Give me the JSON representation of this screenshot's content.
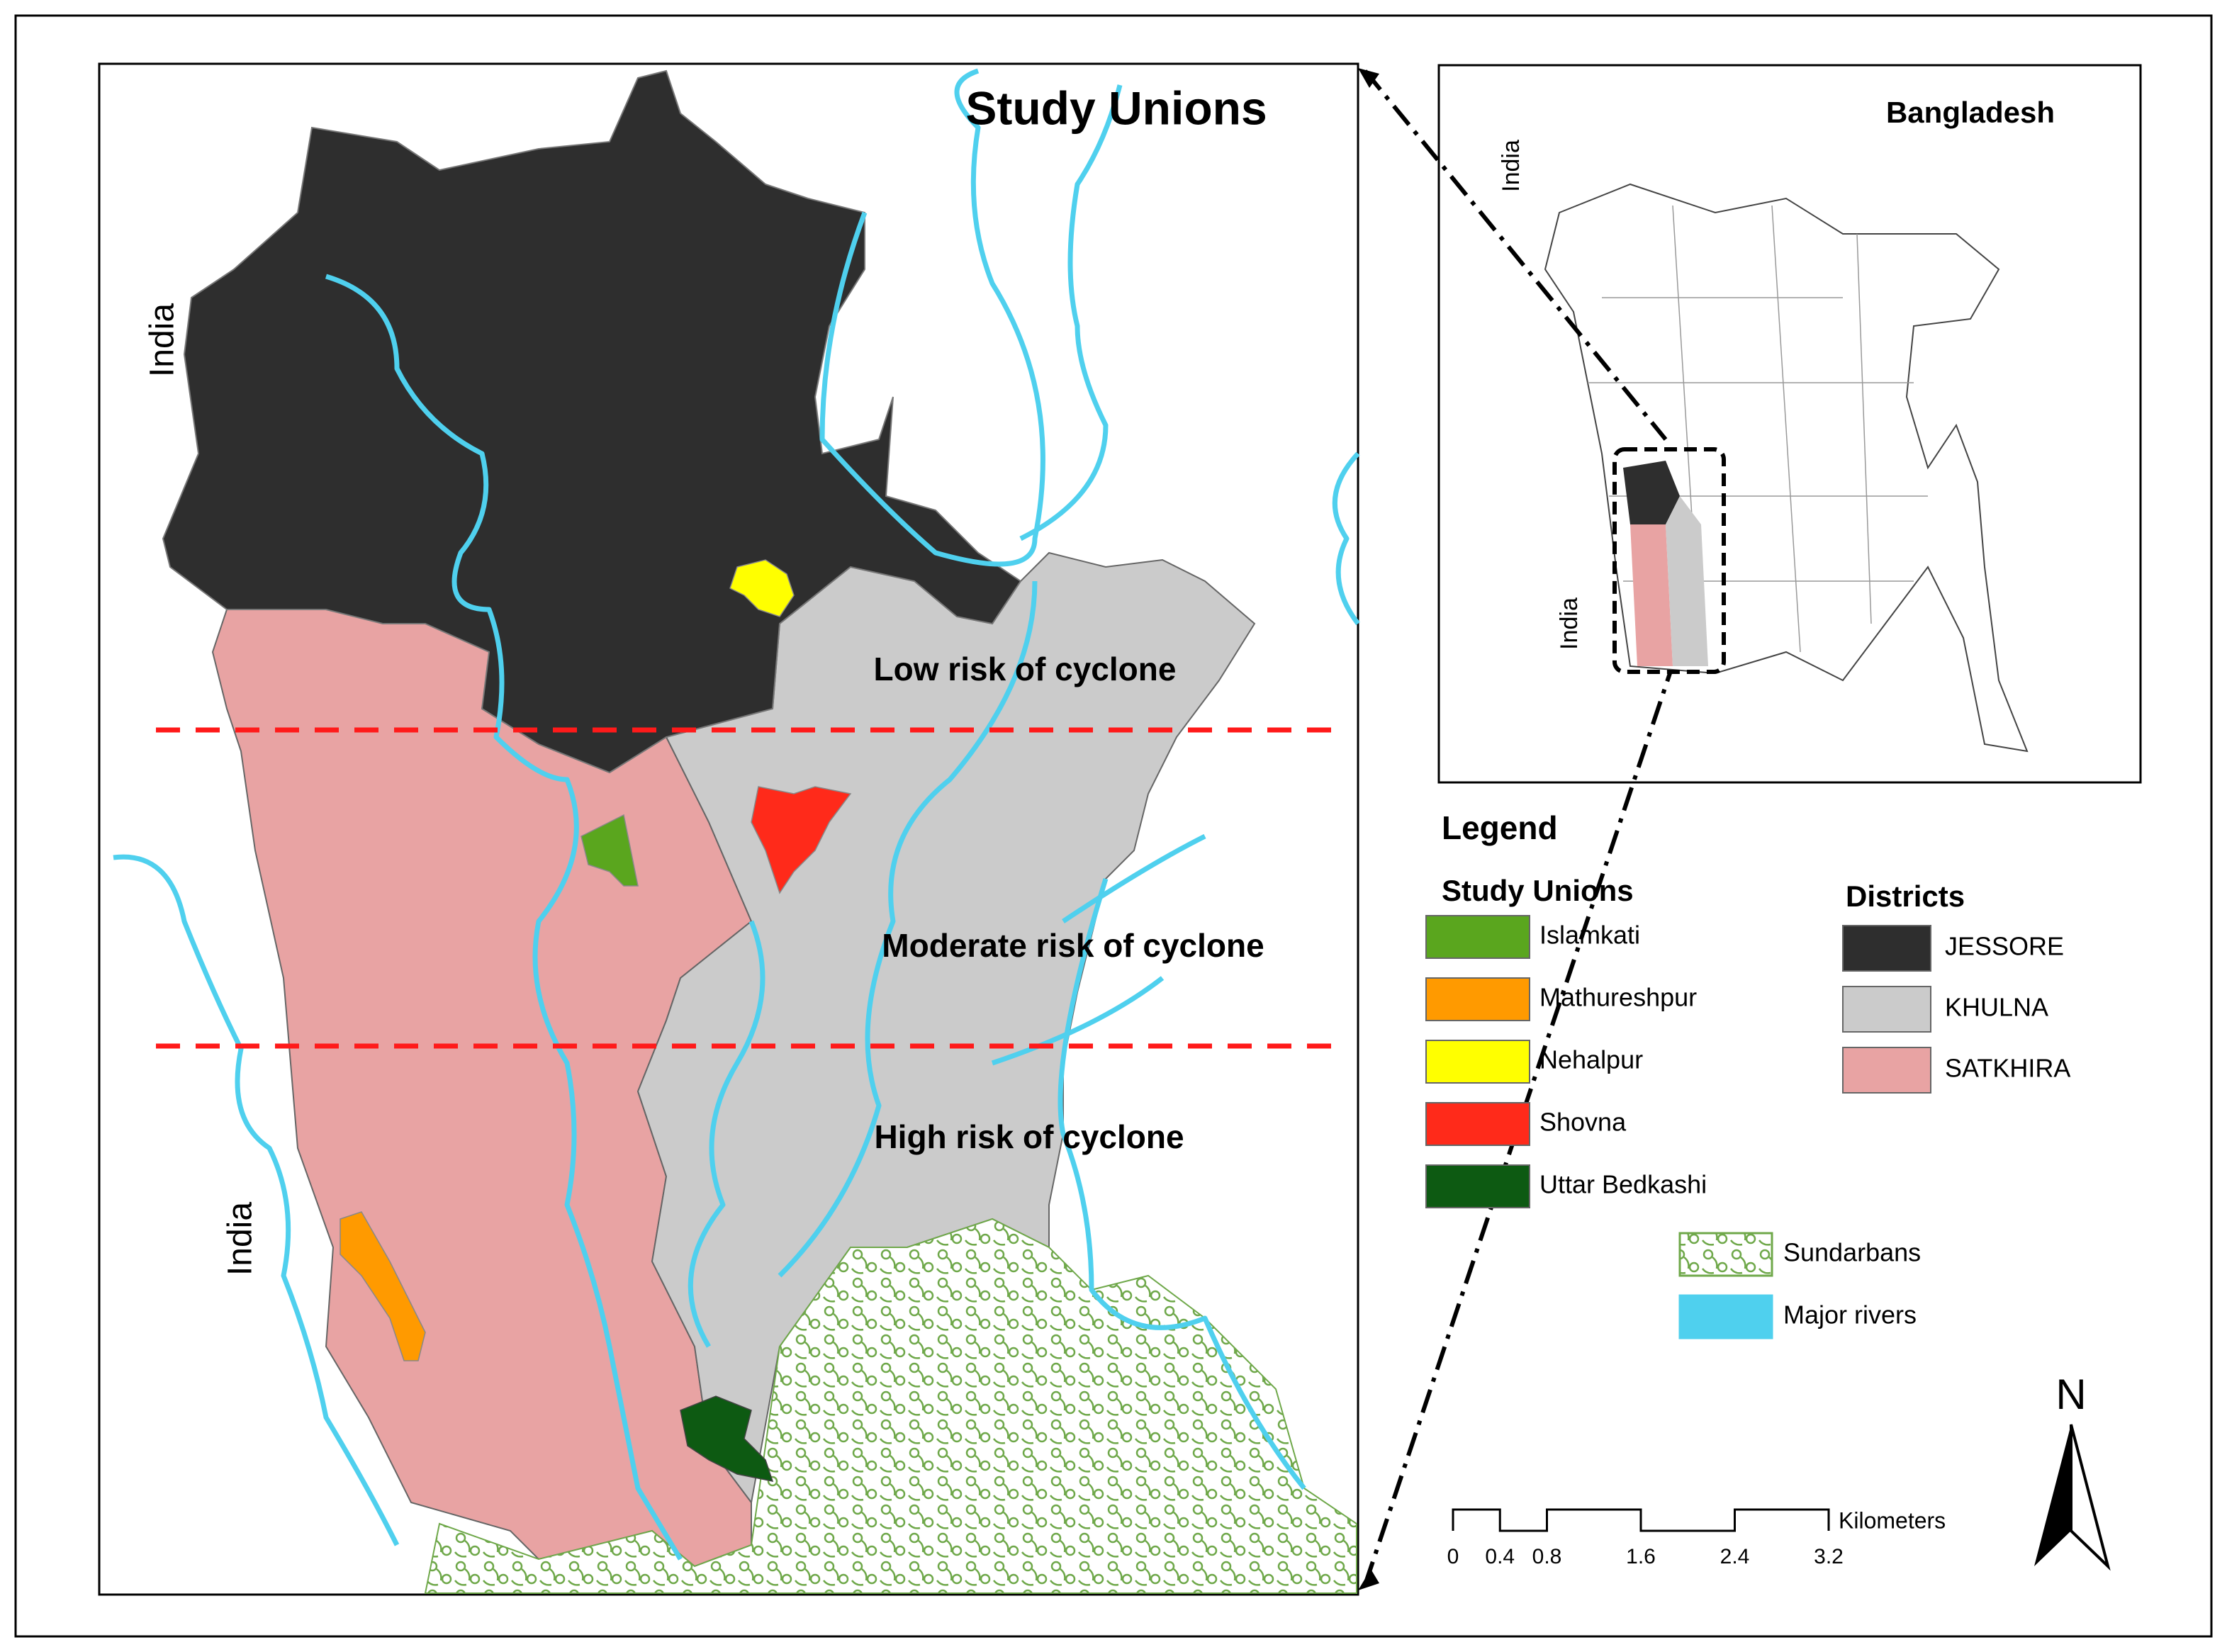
{
  "title": "Study Unions",
  "map_labels": [
    "India",
    "India"
  ],
  "risk_zones": [
    "Low risk of cyclone",
    "Moderate risk of cyclone",
    "High risk of cyclone"
  ],
  "inset": {
    "title": "Bangladesh",
    "labels": [
      "India",
      "India"
    ]
  },
  "legend": {
    "title": "Legend",
    "study_unions": {
      "title": "Study Unions",
      "items": [
        {
          "label": "Islamkati",
          "color": "#5aa61e"
        },
        {
          "label": "Mathureshpur",
          "color": "#ff9a00"
        },
        {
          "label": "Nehalpur",
          "color": "#ffff00"
        },
        {
          "label": "Shovna",
          "color": "#ff2a1a"
        },
        {
          "label": "Uttar Bedkashi",
          "color": "#0d5a12"
        }
      ]
    },
    "districts": {
      "title": "Districts",
      "items": [
        {
          "label": "JESSORE",
          "color": "#2e2e2e"
        },
        {
          "label": "KHULNA",
          "color": "#cbcbcb"
        },
        {
          "label": "SATKHIRA",
          "color": "#e8a3a3"
        }
      ]
    },
    "other": [
      {
        "label": "Sundarbans",
        "color": "#6fa84a"
      },
      {
        "label": "Major rivers",
        "color": "#4fd0ee"
      }
    ]
  },
  "scale_bar": {
    "unit": "Kilometers",
    "ticks": [
      0,
      0.4,
      0.8,
      1.6,
      2.4,
      3.2
    ]
  },
  "north": "N"
}
